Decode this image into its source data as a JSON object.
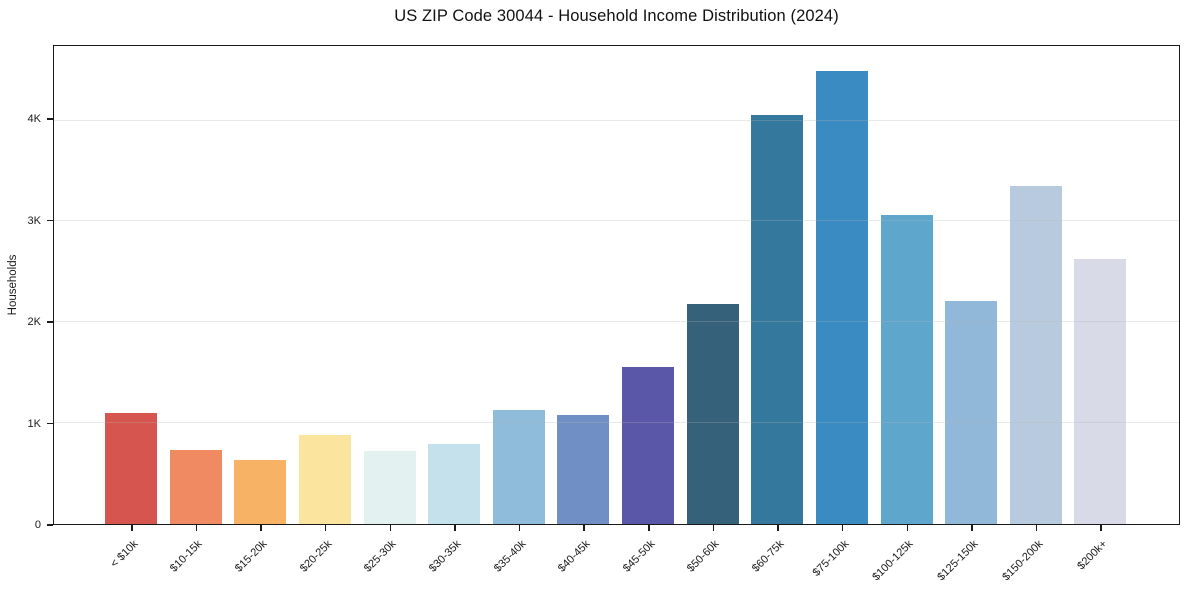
{
  "chart_data": {
    "type": "bar",
    "title": "US ZIP Code 30044 - Household Income Distribution (2024)",
    "xlabel": "",
    "ylabel": "Households",
    "categories": [
      "< $10k",
      "$10-15k",
      "$15-20k",
      "$20-25k",
      "$25-30k",
      "$30-35k",
      "$35-40k",
      "$40-45k",
      "$45-50k",
      "$50-60k",
      "$60-75k",
      "$75-100k",
      "$100-125k",
      "$125-150k",
      "$150-200k",
      "$200k+"
    ],
    "values": [
      1100,
      730,
      635,
      885,
      725,
      795,
      1130,
      1080,
      1560,
      2185,
      4060,
      4500,
      3065,
      2210,
      3360,
      2630
    ],
    "bar_colors": [
      "#d6564f",
      "#f08a63",
      "#f8b266",
      "#fbe49e",
      "#e4f1f1",
      "#c5e1ec",
      "#90bcdb",
      "#7090c5",
      "#5b57a8",
      "#36617a",
      "#35789d",
      "#398bc2",
      "#5ea6cc",
      "#92b8d9",
      "#b8cade",
      "#d8dae7"
    ],
    "ylim": [
      0,
      4730
    ],
    "yticks": [
      {
        "value": 0,
        "label": "0"
      },
      {
        "value": 1000,
        "label": "1K"
      },
      {
        "value": 2000,
        "label": "2K"
      },
      {
        "value": 3000,
        "label": "3K"
      },
      {
        "value": 4000,
        "label": "4K"
      }
    ],
    "grid": "horizontal-only",
    "legend": "none",
    "colors": {
      "background": "#ffffff",
      "axis": "#1a1a1a",
      "grid": "#e8e8e8",
      "text": "#1a1a1a"
    }
  }
}
